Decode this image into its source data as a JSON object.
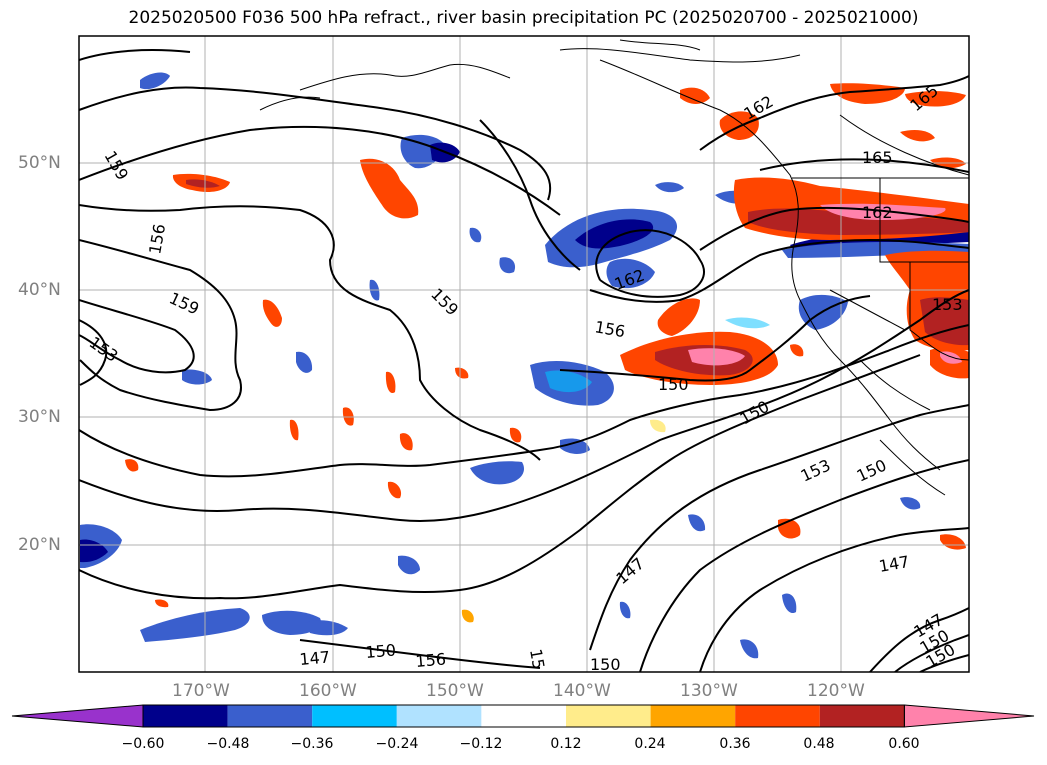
{
  "title": "2025020500 F036 500 hPa refract., river basin precipitation PC (2025020700 - 2025021000)",
  "latitude_labels": [
    "50°N",
    "40°N",
    "30°N",
    "20°N"
  ],
  "longitude_labels": [
    "170°W",
    "160°W",
    "150°W",
    "140°W",
    "130°W",
    "120°W"
  ],
  "contour_labels": [
    "159",
    "156",
    "159",
    "153",
    "159",
    "156",
    "162",
    "150",
    "150",
    "153",
    "150",
    "147",
    "147",
    "147",
    "150",
    "156",
    "15",
    "150",
    "162",
    "165",
    "165",
    "162",
    "153",
    "147",
    "150",
    "150"
  ],
  "colorbar": {
    "ticks": [
      "−0.60",
      "−0.48",
      "−0.36",
      "−0.24",
      "−0.12",
      "0.12",
      "0.24",
      "0.36",
      "0.48",
      "0.60"
    ],
    "colors": [
      "#9932CC",
      "#00008B",
      "#3A5FCD",
      "#00BFFF",
      "#B0E2FF",
      "#FFFFFF",
      "#FFEC8B",
      "#FFA500",
      "#FF4500",
      "#B22222",
      "#FF82AB"
    ]
  }
}
